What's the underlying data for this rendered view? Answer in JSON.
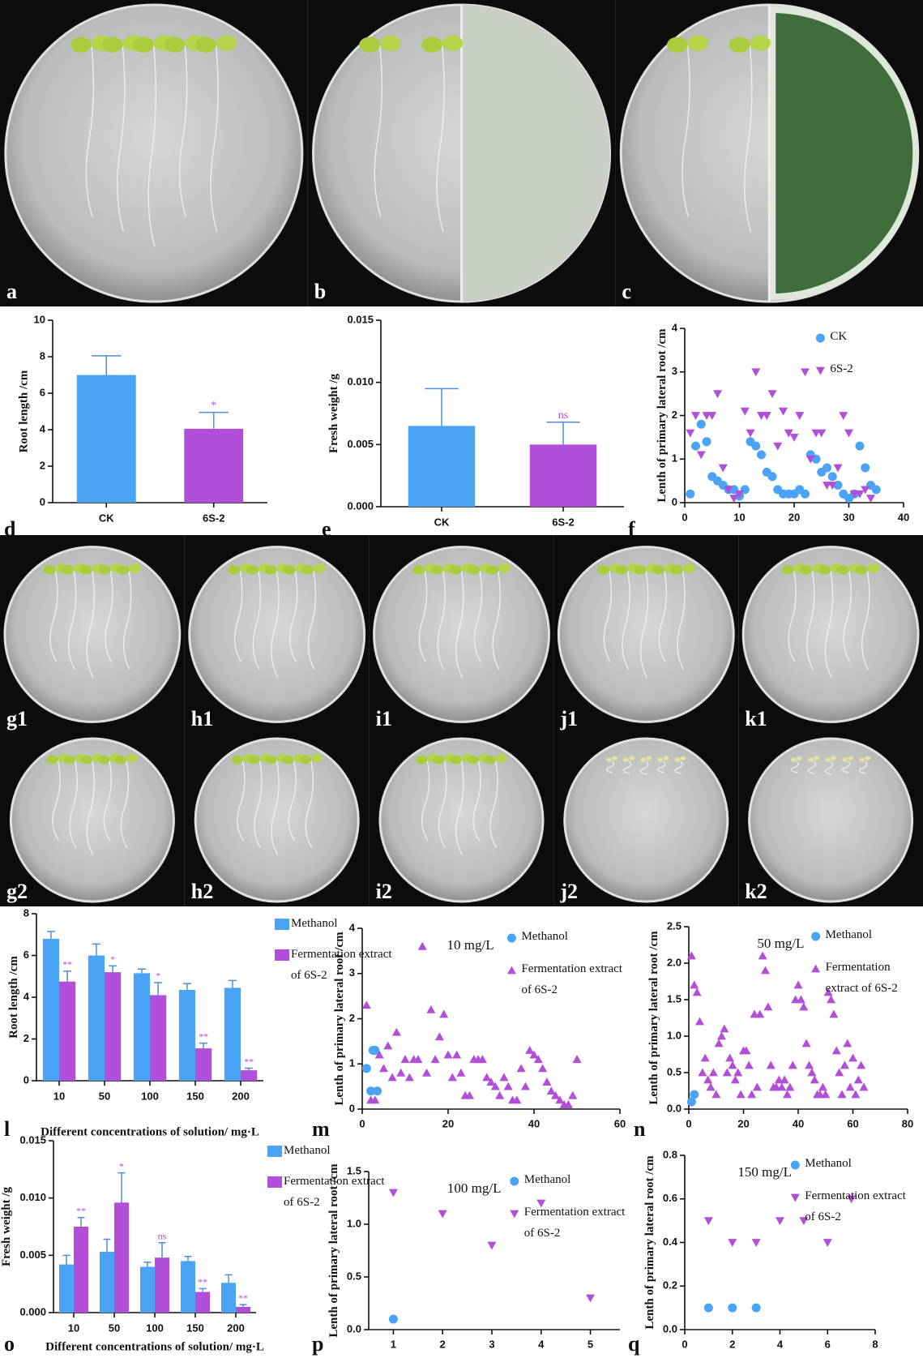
{
  "photos": [
    {
      "label": "a"
    },
    {
      "label": "b"
    },
    {
      "label": "c"
    },
    {
      "label": "g1"
    },
    {
      "label": "h1"
    },
    {
      "label": "i1"
    },
    {
      "label": "j1"
    },
    {
      "label": "k1"
    },
    {
      "label": "g2"
    },
    {
      "label": "h2"
    },
    {
      "label": "i2"
    },
    {
      "label": "j2"
    },
    {
      "label": "k2"
    }
  ],
  "chart_data": [
    {
      "type": "bar",
      "label": "d",
      "ylabel": "Root length /cm",
      "categories": [
        "CK",
        "6S-2"
      ],
      "values": [
        7.0,
        4.05
      ],
      "errors": [
        1.05,
        0.9
      ],
      "colors": [
        "#4aa3f5",
        "#b24fd9"
      ],
      "sig_labels": [
        null,
        "*"
      ],
      "ylim": [
        0,
        10
      ],
      "yticks": [
        0,
        2,
        4,
        6,
        8,
        10
      ]
    },
    {
      "type": "bar",
      "label": "e",
      "ylabel": "Fresh weight /g",
      "categories": [
        "CK",
        "6S-2"
      ],
      "values": [
        0.0065,
        0.005
      ],
      "errors": [
        0.003,
        0.0018
      ],
      "colors": [
        "#4aa3f5",
        "#b24fd9"
      ],
      "sig_labels": [
        null,
        "ns"
      ],
      "ylim": [
        0,
        0.015
      ],
      "yticks": [
        {
          "value": 0,
          "label": "0.000"
        },
        {
          "value": 0.005,
          "label": "0.005"
        },
        {
          "value": 0.01,
          "label": "0.010"
        },
        {
          "value": 0.015,
          "label": "0.015"
        }
      ]
    },
    {
      "type": "scatter",
      "label": "f",
      "ylabel": "Lenth of primary lateral root /cm",
      "xlim": [
        0,
        40
      ],
      "xticks": [
        0,
        10,
        20,
        30,
        40
      ],
      "ylim": [
        0,
        4
      ],
      "yticks": [
        0,
        1,
        2,
        3,
        4
      ],
      "legend": "upper-right",
      "series": [
        {
          "name": "CK",
          "color": "#4aa3f5",
          "marker": "circle",
          "x": [
            1,
            2,
            3,
            4,
            5,
            6,
            7,
            8,
            9,
            10,
            11,
            12,
            13,
            14,
            15,
            16,
            17,
            18,
            19,
            20,
            21,
            22,
            23,
            24,
            25,
            26,
            27,
            28,
            29,
            30,
            31,
            32,
            33,
            34,
            35
          ],
          "values": [
            0.2,
            1.3,
            1.8,
            1.4,
            0.6,
            0.5,
            0.4,
            0.3,
            0.3,
            0.15,
            0.3,
            1.4,
            1.3,
            1.1,
            0.7,
            0.6,
            0.3,
            0.2,
            0.2,
            0.2,
            0.3,
            0.2,
            1.1,
            1.0,
            0.7,
            0.8,
            0.6,
            0.4,
            0.2,
            0.1,
            0.2,
            1.3,
            0.8,
            0.4,
            0.3
          ]
        },
        {
          "name": "6S-2",
          "color": "#b24fd9",
          "marker": "triangle-down",
          "x": [
            1,
            2,
            3,
            4,
            5,
            6,
            7,
            8,
            9,
            10,
            11,
            12,
            13,
            14,
            15,
            16,
            17,
            18,
            19,
            20,
            21,
            22,
            23,
            24,
            25,
            26,
            27,
            28,
            29,
            30,
            31,
            32,
            33,
            34
          ],
          "values": [
            1.6,
            2.0,
            1.1,
            2.0,
            2.0,
            2.5,
            0.8,
            0.3,
            0.1,
            0.2,
            2.1,
            1.6,
            3.0,
            2.0,
            2.0,
            2.5,
            1.3,
            2.1,
            1.6,
            1.5,
            2.0,
            3.0,
            1.0,
            1.6,
            1.6,
            0.4,
            0.4,
            0.8,
            2.0,
            1.6,
            0.2,
            0.2,
            0.3,
            0.1
          ]
        }
      ]
    },
    {
      "type": "grouped-bar",
      "label": "l",
      "ylabel": "Root length /cm",
      "xlabel": "Different concentrations of solution/ mg·L",
      "categories": [
        "10",
        "50",
        "100",
        "150",
        "200"
      ],
      "ylim": [
        0,
        8
      ],
      "yticks": [
        0,
        2,
        4,
        6,
        8
      ],
      "legend": "right",
      "series": [
        {
          "name": "Methanol",
          "color": "#4aa3f5",
          "values": [
            6.8,
            6.0,
            5.15,
            4.35,
            4.45
          ],
          "errors": [
            0.35,
            0.55,
            0.2,
            0.3,
            0.35
          ]
        },
        {
          "name": "Fermentation extract of 6S-2",
          "color": "#b24fd9",
          "values": [
            4.75,
            5.2,
            4.1,
            1.55,
            0.5
          ],
          "errors": [
            0.5,
            0.3,
            0.6,
            0.25,
            0.1
          ],
          "sig_labels": [
            "**",
            "*",
            "*",
            "**",
            "**"
          ]
        }
      ]
    },
    {
      "type": "scatter",
      "label": "m",
      "ylabel": "Lenth of primary lateral root /cm",
      "annotation": "10 mg/L",
      "xlim": [
        0,
        60
      ],
      "xticks": [
        0,
        20,
        40,
        60
      ],
      "ylim": [
        0,
        4
      ],
      "yticks": [
        0,
        1,
        2,
        3,
        4
      ],
      "legend": "upper-right",
      "series": [
        {
          "name": "Methanol",
          "color": "#4aa3f5",
          "marker": "circle",
          "x": [
            1,
            2,
            2.5,
            3,
            3.5
          ],
          "values": [
            0.9,
            0.4,
            1.3,
            1.3,
            0.4
          ]
        },
        {
          "name": "Fermentation extract of 6S-2",
          "color": "#b24fd9",
          "marker": "triangle-up",
          "x": [
            1,
            2,
            3,
            4,
            5,
            6,
            7,
            8,
            9,
            10,
            11,
            12,
            13,
            14,
            15,
            16,
            17,
            18,
            19,
            20,
            21,
            22,
            23,
            24,
            25,
            26,
            27,
            28,
            29,
            30,
            31,
            32,
            33,
            34,
            35,
            36,
            37,
            38,
            39,
            40,
            41,
            42,
            43,
            44,
            45,
            46,
            47,
            48,
            49,
            50
          ],
          "values": [
            2.3,
            0.2,
            0.2,
            1.2,
            0.9,
            1.4,
            0.7,
            1.7,
            0.8,
            1.1,
            0.7,
            1.1,
            1.1,
            3.6,
            0.8,
            2.2,
            1.1,
            1.6,
            2.1,
            1.2,
            0.7,
            1.2,
            0.8,
            0.3,
            0.3,
            1.1,
            1.1,
            1.1,
            0.7,
            0.6,
            0.5,
            0.3,
            0.7,
            0.5,
            0.2,
            0.2,
            0.9,
            0.5,
            1.3,
            1.2,
            1.1,
            0.9,
            0.6,
            0.4,
            0.3,
            0.2,
            0.1,
            0.1,
            0.3,
            1.1
          ]
        }
      ]
    },
    {
      "type": "scatter",
      "label": "n",
      "ylabel": "Lenth of primary lateral root /cm",
      "annotation": "50 mg/L",
      "xlim": [
        0,
        80
      ],
      "xticks": [
        0,
        20,
        40,
        60,
        80
      ],
      "ylim": [
        0,
        2.5
      ],
      "yticks": [
        {
          "value": 0,
          "label": "0.0"
        },
        0.5,
        {
          "value": 1,
          "label": "1.0"
        },
        1.5,
        {
          "value": 2,
          "label": "2.0"
        },
        2.5
      ],
      "legend": "upper-right",
      "series": [
        {
          "name": "Methanol",
          "color": "#4aa3f5",
          "marker": "circle",
          "x": [
            1,
            2
          ],
          "values": [
            0.1,
            0.2
          ]
        },
        {
          "name": "Fermentation extract of 6S-2",
          "color": "#b24fd9",
          "marker": "triangle-up",
          "x": [
            1,
            2,
            3,
            4,
            5,
            6,
            7,
            8,
            9,
            10,
            11,
            12,
            13,
            14,
            15,
            16,
            17,
            18,
            19,
            20,
            21,
            22,
            23,
            24,
            25,
            26,
            27,
            28,
            29,
            30,
            31,
            32,
            33,
            34,
            35,
            36,
            37,
            38,
            39,
            40,
            41,
            42,
            43,
            44,
            45,
            46,
            47,
            48,
            49,
            50,
            51,
            52,
            53,
            54,
            55,
            56,
            57,
            58,
            59,
            60,
            61,
            62,
            63,
            64
          ],
          "values": [
            2.1,
            1.7,
            1.6,
            1.2,
            0.5,
            0.7,
            0.4,
            0.3,
            0.5,
            0.2,
            0.9,
            1.0,
            1.1,
            0.5,
            0.7,
            0.6,
            0.4,
            0.5,
            0.2,
            0.8,
            0.8,
            0.6,
            0.2,
            1.3,
            0.3,
            1.3,
            2.1,
            1.9,
            1.4,
            0.6,
            0.3,
            0.3,
            0.4,
            0.3,
            0.4,
            0.2,
            0.3,
            0.6,
            1.5,
            1.7,
            1.5,
            1.4,
            0.9,
            0.6,
            0.5,
            0.4,
            0.2,
            0.2,
            0.3,
            0.2,
            1.6,
            1.5,
            1.3,
            0.8,
            0.5,
            0.2,
            0.6,
            0.9,
            0.3,
            0.7,
            0.2,
            0.4,
            0.6,
            0.3
          ]
        }
      ]
    },
    {
      "type": "grouped-bar",
      "label": "o",
      "ylabel": "Fresh weight /g",
      "xlabel": "Different concentrations of solution/ mg·L",
      "categories": [
        "10",
        "50",
        "100",
        "150",
        "200"
      ],
      "ylim": [
        0,
        0.015
      ],
      "yticks": [
        {
          "value": 0,
          "label": "0.000"
        },
        {
          "value": 0.005,
          "label": "0.005"
        },
        {
          "value": 0.01,
          "label": "0.010"
        },
        {
          "value": 0.015,
          "label": "0.015"
        }
      ],
      "legend": "right",
      "series": [
        {
          "name": "Methanol",
          "color": "#4aa3f5",
          "values": [
            0.0042,
            0.0053,
            0.004,
            0.0045,
            0.0026
          ],
          "errors": [
            0.0008,
            0.0011,
            0.0004,
            0.0004,
            0.0007
          ]
        },
        {
          "name": "Fermentation extract of 6S-2",
          "color": "#b24fd9",
          "values": [
            0.0075,
            0.0096,
            0.0048,
            0.0018,
            0.0005
          ],
          "errors": [
            0.0008,
            0.0026,
            0.0013,
            0.0003,
            0.0002
          ],
          "sig_labels": [
            "**",
            "*",
            "ns",
            "**",
            "**"
          ]
        }
      ]
    },
    {
      "type": "scatter",
      "label": "p",
      "ylabel": "Lenth of primary lateral root /cm",
      "annotation": "100 mg/L",
      "xlim": [
        0.5,
        5.6
      ],
      "xticks": [
        1,
        2,
        3,
        4,
        5
      ],
      "ylim": [
        0,
        1.5
      ],
      "yticks": [
        {
          "value": 0,
          "label": "0.0"
        },
        0.5,
        {
          "value": 1,
          "label": "1.0"
        },
        1.5
      ],
      "legend": "upper-right",
      "series": [
        {
          "name": "Methanol",
          "color": "#4aa3f5",
          "marker": "circle",
          "x": [
            1
          ],
          "values": [
            0.1
          ]
        },
        {
          "name": "Fermentation extract of 6S-2",
          "color": "#b24fd9",
          "marker": "triangle-down",
          "x": [
            1,
            2,
            3,
            4,
            5
          ],
          "values": [
            1.3,
            1.1,
            0.8,
            1.2,
            0.3
          ]
        }
      ]
    },
    {
      "type": "scatter",
      "label": "q",
      "ylabel": "Lenth of primary lateral root /cm",
      "annotation": "150 mg/L",
      "xlim": [
        0,
        8
      ],
      "xticks": [
        0,
        2,
        4,
        6,
        8
      ],
      "ylim": [
        0,
        0.8
      ],
      "yticks": [
        {
          "value": 0,
          "label": "0.0"
        },
        0.2,
        0.4,
        0.6,
        0.8
      ],
      "legend": "upper-right",
      "series": [
        {
          "name": "Methanol",
          "color": "#4aa3f5",
          "marker": "circle",
          "x": [
            1,
            2,
            3
          ],
          "values": [
            0.1,
            0.1,
            0.1
          ]
        },
        {
          "name": "Fermentation extract of 6S-2",
          "color": "#b24fd9",
          "marker": "triangle-down",
          "x": [
            1,
            2,
            3,
            4,
            5,
            6,
            7
          ],
          "values": [
            0.5,
            0.4,
            0.4,
            0.5,
            0.5,
            0.4,
            0.6
          ]
        }
      ]
    }
  ]
}
